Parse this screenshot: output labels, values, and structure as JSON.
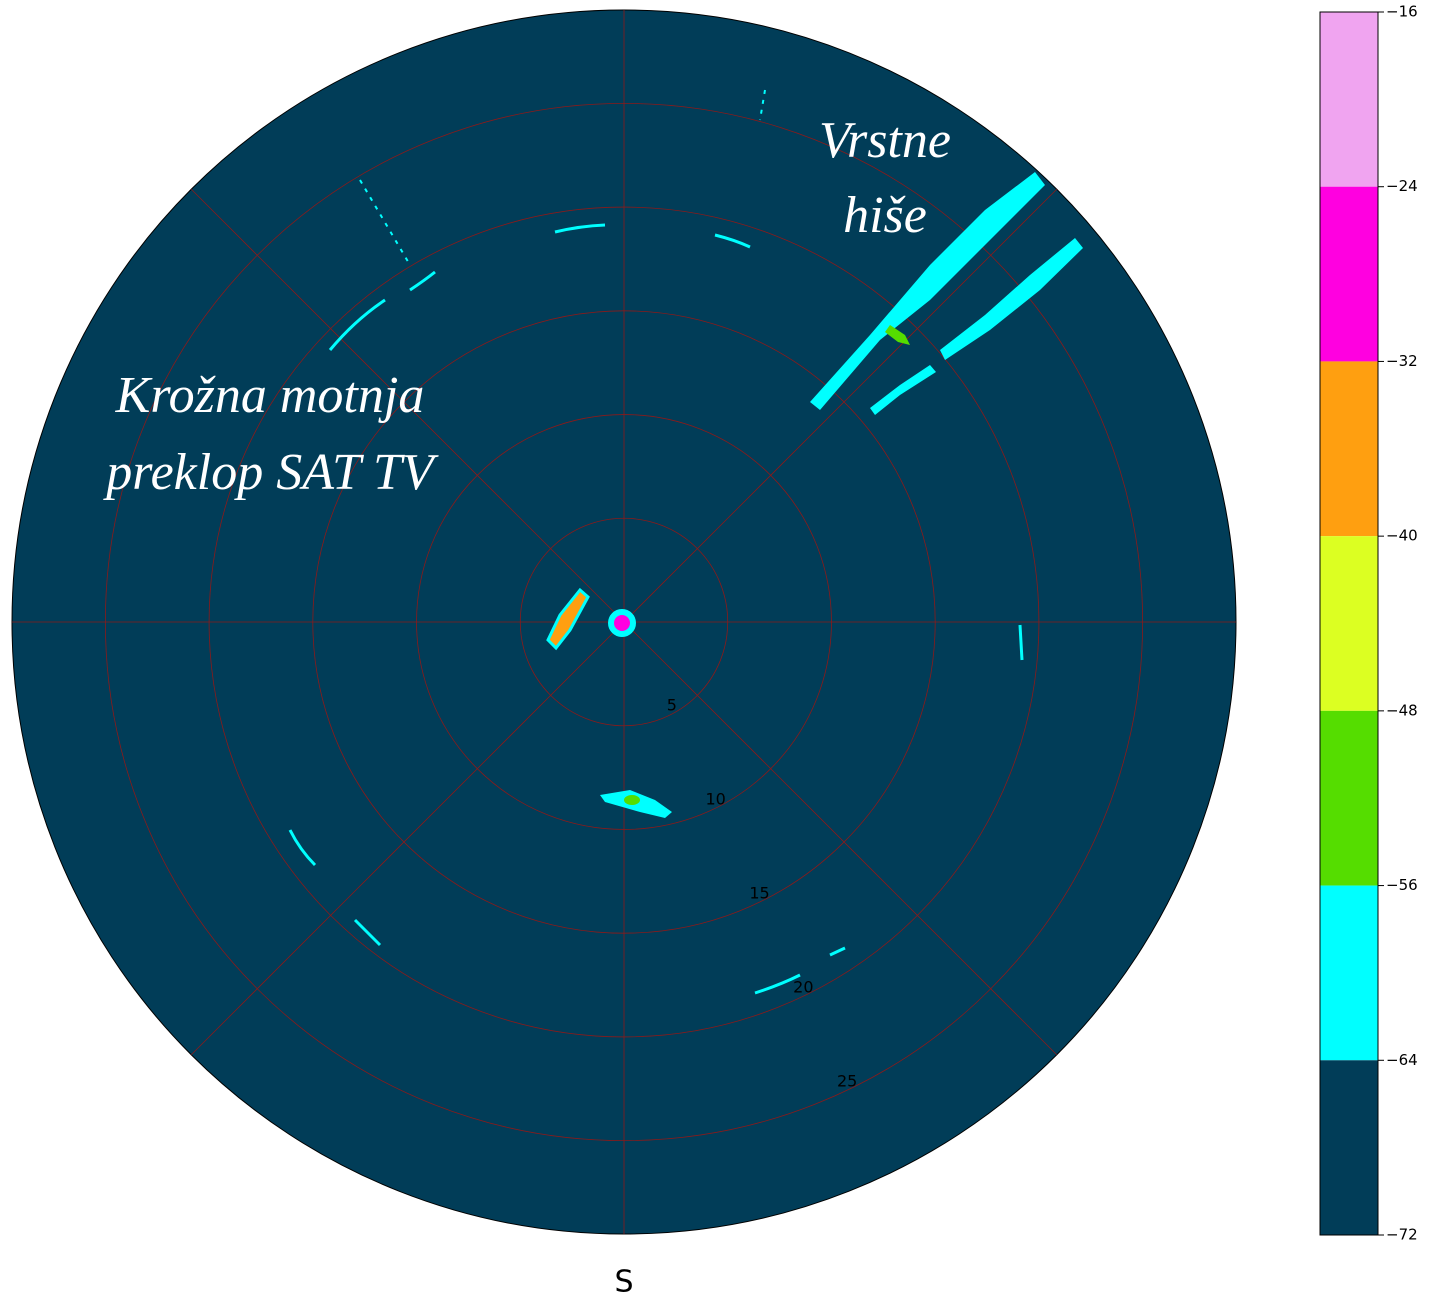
{
  "chart_data": {
    "type": "polar",
    "direction_label": "S",
    "annotations": [
      [
        "Vrstne",
        "hiše"
      ],
      [
        "Krožna motnja",
        "preklop SAT TV"
      ]
    ],
    "rlim": [
      0,
      29.5
    ],
    "rticks": [
      5,
      10,
      15,
      20,
      25
    ],
    "grid": true,
    "grid_color": "#8b1a1a",
    "colorbar": {
      "ticks": [
        {
          "value": -16,
          "label": "−16"
        },
        {
          "value": -24,
          "label": "−24"
        },
        {
          "value": -32,
          "label": "−32"
        },
        {
          "value": -40,
          "label": "−40"
        },
        {
          "value": -48,
          "label": "−48"
        },
        {
          "value": -56,
          "label": "−56"
        },
        {
          "value": -64,
          "label": "−64"
        },
        {
          "value": -72,
          "label": "−72"
        }
      ],
      "colors": [
        "#f0a4f0",
        "#ff00e0",
        "#ff9f10",
        "#dcff22",
        "#55dd00",
        "#00ffff",
        "#013d58"
      ]
    }
  }
}
